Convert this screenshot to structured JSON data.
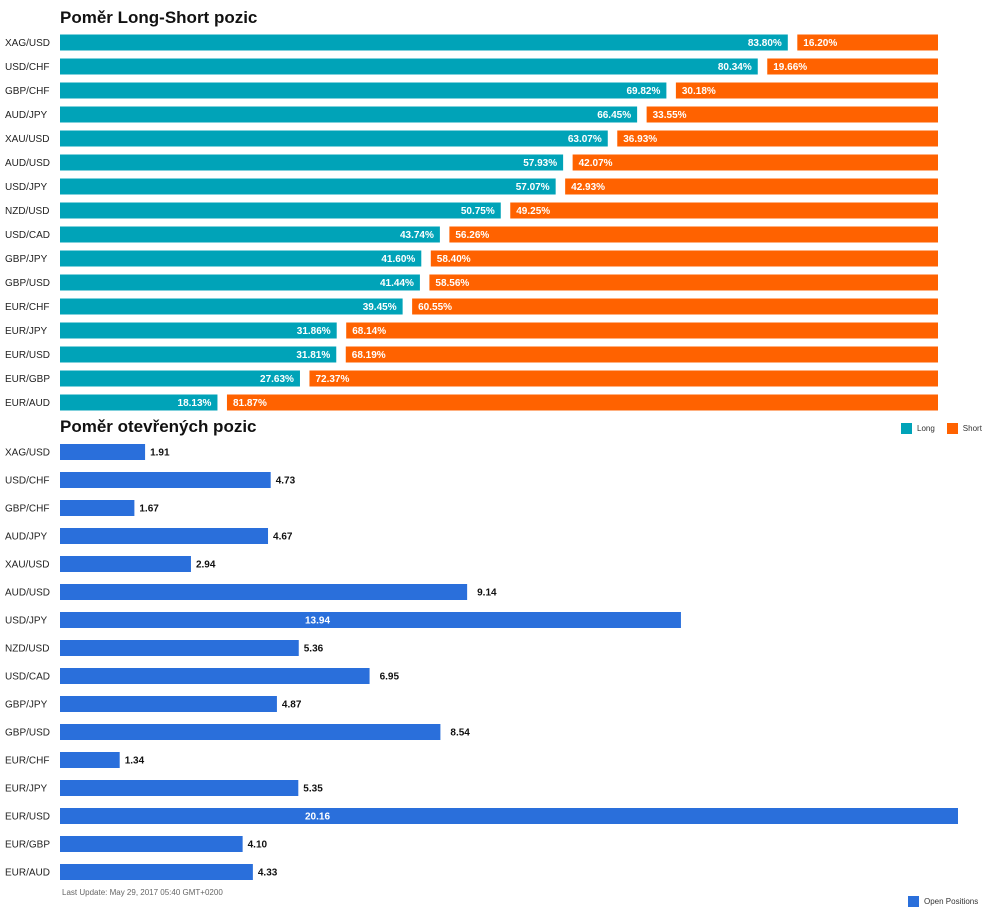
{
  "titles": {
    "ratio": "Poměr Long-Short pozic",
    "open": "Poměr otevřených pozic"
  },
  "legend": {
    "long": "Long",
    "short": "Short",
    "open": "Open Positions"
  },
  "colors": {
    "long": "#00a3b8",
    "short": "#ff6200",
    "open": "#2a6fdb"
  },
  "last_update": "Last Update: May 29, 2017 05:40 GMT+0200",
  "chart_data": [
    {
      "type": "bar",
      "orientation": "horizontal",
      "stacked": true,
      "title": "Poměr Long-Short pozic",
      "categories": [
        "XAG/USD",
        "USD/CHF",
        "GBP/CHF",
        "AUD/JPY",
        "XAU/USD",
        "AUD/USD",
        "USD/JPY",
        "NZD/USD",
        "USD/CAD",
        "GBP/JPY",
        "GBP/USD",
        "EUR/CHF",
        "EUR/JPY",
        "EUR/USD",
        "EUR/GBP",
        "EUR/AUD"
      ],
      "series": [
        {
          "name": "Long",
          "values": [
            83.8,
            80.34,
            69.82,
            66.45,
            63.07,
            57.93,
            57.07,
            50.75,
            43.74,
            41.6,
            41.44,
            39.45,
            31.86,
            31.81,
            27.63,
            18.13
          ]
        },
        {
          "name": "Short",
          "values": [
            16.2,
            19.66,
            30.18,
            33.55,
            36.93,
            42.07,
            42.93,
            49.25,
            56.26,
            58.4,
            58.56,
            60.55,
            68.14,
            68.19,
            72.37,
            81.87
          ]
        }
      ],
      "labels": {
        "long": [
          "83.80%",
          "80.34%",
          "69.82%",
          "66.45%",
          "63.07%",
          "57.93%",
          "57.07%",
          "50.75%",
          "43.74%",
          "41.60%",
          "41.44%",
          "39.45%",
          "31.86%",
          "31.81%",
          "27.63%",
          "18.13%"
        ],
        "short": [
          "16.20%",
          "19.66%",
          "30.18%",
          "33.55%",
          "36.93%",
          "42.07%",
          "42.93%",
          "49.25%",
          "56.26%",
          "58.40%",
          "58.56%",
          "60.55%",
          "68.14%",
          "68.19%",
          "72.37%",
          "81.87%"
        ]
      },
      "xlim": [
        0,
        100
      ],
      "legend_position": "bottom-right"
    },
    {
      "type": "bar",
      "orientation": "horizontal",
      "title": "Poměr otevřených pozic",
      "categories": [
        "XAG/USD",
        "USD/CHF",
        "GBP/CHF",
        "AUD/JPY",
        "XAU/USD",
        "AUD/USD",
        "USD/JPY",
        "NZD/USD",
        "USD/CAD",
        "GBP/JPY",
        "GBP/USD",
        "EUR/CHF",
        "EUR/JPY",
        "EUR/USD",
        "EUR/GBP",
        "EUR/AUD"
      ],
      "series": [
        {
          "name": "Open Positions",
          "values": [
            1.91,
            4.73,
            1.67,
            4.67,
            2.94,
            9.14,
            13.94,
            5.36,
            6.95,
            4.87,
            8.54,
            1.34,
            5.35,
            20.16,
            4.1,
            4.33
          ]
        }
      ],
      "labels": [
        "1.91",
        "4.73",
        "1.67",
        "4.67",
        "2.94",
        "9.14",
        "13.94",
        "5.36",
        "6.95",
        "4.87",
        "8.54",
        "1.34",
        "5.35",
        "20.16",
        "4.10",
        "4.33"
      ],
      "xlim": [
        0,
        20.16
      ],
      "legend_position": "bottom-right"
    }
  ]
}
